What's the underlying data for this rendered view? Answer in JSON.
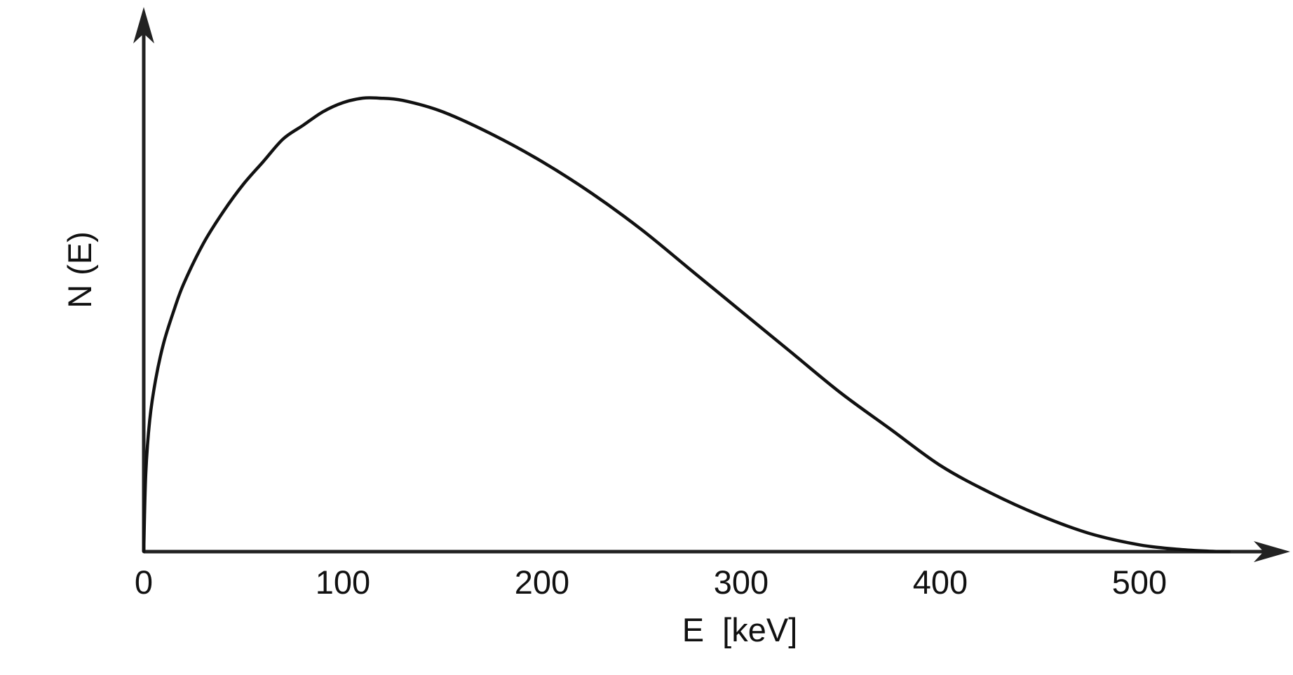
{
  "chart_data": {
    "type": "line",
    "title": "",
    "xlabel": "E  [keV]",
    "ylabel": "N (E)",
    "xlim": [
      0,
      575
    ],
    "ylim": [
      0,
      1.1
    ],
    "x_ticks": [
      0,
      100,
      200,
      300,
      400,
      500
    ],
    "x_tick_labels": [
      "0",
      "100",
      "200",
      "300",
      "400",
      "500"
    ],
    "y_ticks": [],
    "grid": false,
    "legend": "none",
    "colors": {
      "line": "#111111",
      "axis": "#222222"
    },
    "series": [
      {
        "x": [
          0,
          1,
          3,
          6,
          10,
          15,
          20,
          30,
          40,
          50,
          60,
          70,
          80,
          90,
          100,
          110,
          118,
          130,
          150,
          175,
          200,
          225,
          250,
          275,
          300,
          325,
          350,
          375,
          400,
          425,
          450,
          475,
          500,
          520,
          535,
          545
        ],
        "values": [
          0,
          0.17,
          0.29,
          0.38,
          0.46,
          0.53,
          0.59,
          0.68,
          0.75,
          0.81,
          0.86,
          0.91,
          0.94,
          0.97,
          0.99,
          1.0,
          1.0,
          0.995,
          0.97,
          0.92,
          0.86,
          0.79,
          0.71,
          0.62,
          0.53,
          0.44,
          0.35,
          0.27,
          0.19,
          0.13,
          0.08,
          0.04,
          0.015,
          0.005,
          0.001,
          0
        ]
      }
    ]
  }
}
